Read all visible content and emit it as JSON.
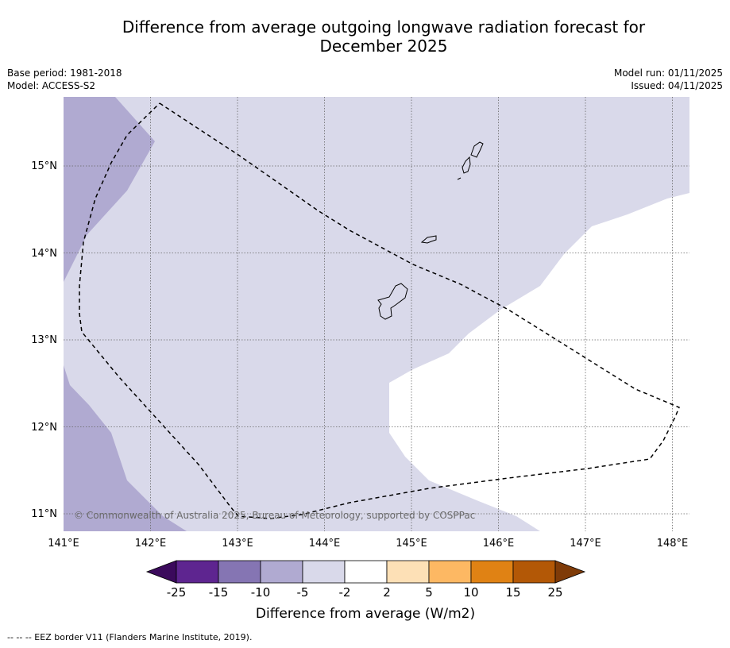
{
  "title_line1": "Difference from average outgoing longwave radiation forecast for",
  "title_line2": "December 2025",
  "base_period": "Base period: 1981-2018",
  "model": "Model: ACCESS-S2",
  "model_run": "Model run: 01/11/2025",
  "issued": "Issued: 04/11/2025",
  "copyright": "© Commonwealth of Australia 2025, Bureau of Meteorology, supported by COSPPac",
  "footnote": "--  --  -- EEZ border V11 (Flanders Marine Institute, 2019).",
  "map": {
    "lon_range": [
      141.0,
      148.2
    ],
    "lat_range": [
      10.8,
      15.8
    ],
    "lon_ticks": [
      "141°E",
      "142°E",
      "143°E",
      "144°E",
      "145°E",
      "146°E",
      "147°E",
      "148°E"
    ],
    "lat_ticks": [
      "15°N",
      "14°N",
      "13°N",
      "12°N",
      "11°N"
    ],
    "islands": [
      "Guam",
      "Rota",
      "Tinian",
      "Saipan"
    ]
  },
  "colorbar": {
    "title": "Difference from average (W/m2)",
    "labels": [
      "-25",
      "-15",
      "-10",
      "-5",
      "-2",
      "2",
      "5",
      "10",
      "15",
      "25"
    ],
    "colors": [
      "#3b0a5c",
      "#5e2590",
      "#8575b3",
      "#b0aad1",
      "#d9d9ea",
      "#ffffff",
      "#fde0b6",
      "#fdb863",
      "#e08214",
      "#b35806",
      "#7f3b08"
    ]
  }
}
